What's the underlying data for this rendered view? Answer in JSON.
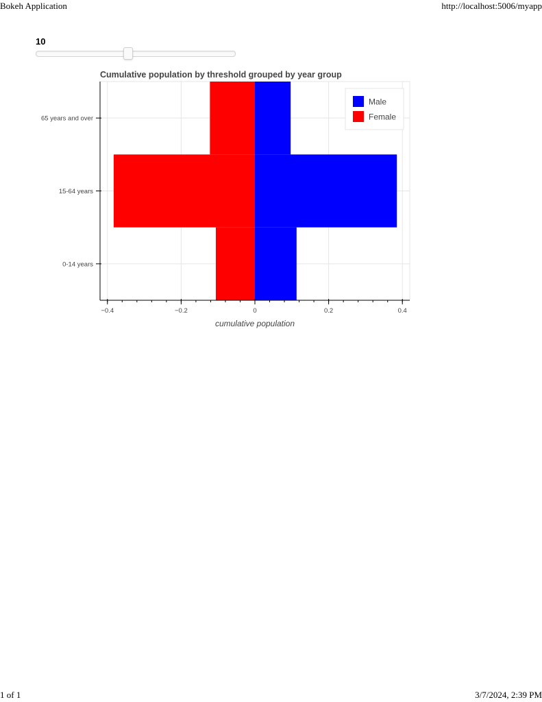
{
  "print_header": {
    "title": "Bokeh Application",
    "url": "http://localhost:5006/myapp"
  },
  "print_footer": {
    "page": "1 of 1",
    "datetime": "3/7/2024, 2:39 PM"
  },
  "slider": {
    "value": "10",
    "fraction": 0.46
  },
  "colors": {
    "male": "#0000ff",
    "female": "#ff0000",
    "title": "#444444",
    "axis": "#000000",
    "grid": "#e5e5e5"
  },
  "chart_data": {
    "type": "bar",
    "orientation": "horizontal",
    "title": "Cumulative population by threshold grouped by year group",
    "xlabel": "cumulative population",
    "ylabel": "",
    "categories": [
      "0-14 years",
      "15-64 years",
      "65 years and over"
    ],
    "series": [
      {
        "name": "Male",
        "values": [
          0.113,
          0.385,
          0.097
        ]
      },
      {
        "name": "Female",
        "values": [
          -0.106,
          -0.383,
          -0.122
        ]
      }
    ],
    "xlim": [
      -0.42,
      0.42
    ],
    "xticks": [
      -0.4,
      -0.2,
      0,
      0.2,
      0.4
    ],
    "xtick_labels": [
      "−0.4",
      "−0.2",
      "0",
      "0.2",
      "0.4"
    ],
    "grid": true,
    "legend_position": "top-right"
  }
}
